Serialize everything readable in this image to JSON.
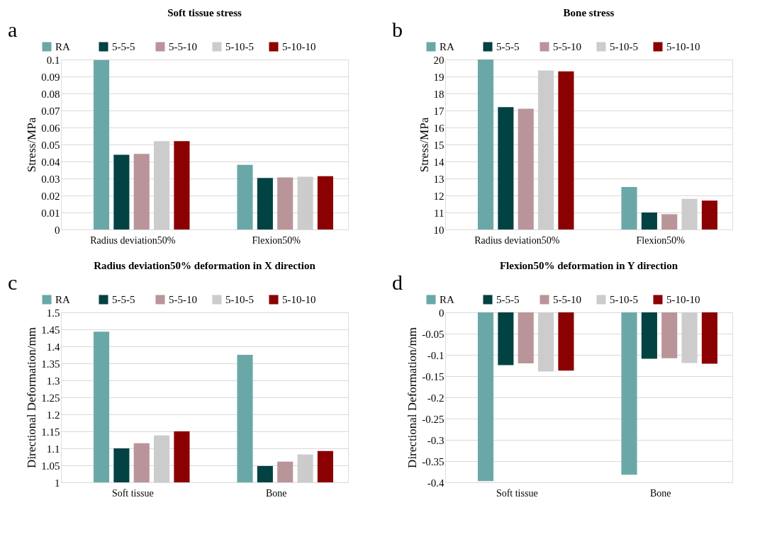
{
  "chart_data": [
    {
      "type": "bar",
      "title": "Soft tissue stress",
      "annotations": [
        "a"
      ],
      "ylabel": "Stress/MPa",
      "categories": [
        "Radius deviation50%",
        "Flexion50%"
      ],
      "ylim": [
        0,
        0.1
      ],
      "yticks": [
        0,
        0.01,
        0.02,
        0.03,
        0.04,
        0.05,
        0.06,
        0.07,
        0.08,
        0.09,
        0.1
      ],
      "grid": "y",
      "legend": "top",
      "series": [
        {
          "name": "RA",
          "color": "#6aa8a8",
          "values": [
            0.0997,
            0.038
          ]
        },
        {
          "name": "5-5-5",
          "color": "#034242",
          "values": [
            0.044,
            0.0303
          ]
        },
        {
          "name": "5-5-10",
          "color": "#b9959a",
          "values": [
            0.0445,
            0.0306
          ]
        },
        {
          "name": "5-10-5",
          "color": "#cccccc",
          "values": [
            0.052,
            0.031
          ]
        },
        {
          "name": "5-10-10",
          "color": "#8b0000",
          "values": [
            0.052,
            0.0314
          ]
        }
      ]
    },
    {
      "type": "bar",
      "title": "Bone stress",
      "annotations": [
        "b"
      ],
      "ylabel": "Stress/MPa",
      "categories": [
        "Radius deviation50%",
        "Flexion50%"
      ],
      "ylim": [
        10,
        20
      ],
      "yticks": [
        10,
        11,
        12,
        13,
        14,
        15,
        16,
        17,
        18,
        19,
        20
      ],
      "grid": "y",
      "legend": "top",
      "series": [
        {
          "name": "RA",
          "color": "#6aa8a8",
          "values": [
            20.0,
            12.5
          ]
        },
        {
          "name": "5-5-5",
          "color": "#034242",
          "values": [
            17.2,
            11.0
          ]
        },
        {
          "name": "5-5-10",
          "color": "#b9959a",
          "values": [
            17.1,
            10.9
          ]
        },
        {
          "name": "5-10-5",
          "color": "#cccccc",
          "values": [
            19.35,
            11.8
          ]
        },
        {
          "name": "5-10-10",
          "color": "#8b0000",
          "values": [
            19.3,
            11.7
          ]
        }
      ]
    },
    {
      "type": "bar",
      "title": "Radius deviation50% deformation in X direction",
      "annotations": [
        "c"
      ],
      "ylabel": "Directional Deformation/mm",
      "categories": [
        "Soft tissue",
        "Bone"
      ],
      "ylim": [
        1,
        1.5
      ],
      "yticks": [
        1,
        1.05,
        1.1,
        1.15,
        1.2,
        1.25,
        1.3,
        1.35,
        1.4,
        1.45,
        1.5
      ],
      "grid": "y",
      "legend": "top",
      "series": [
        {
          "name": "RA",
          "color": "#6aa8a8",
          "values": [
            1.443,
            1.375
          ]
        },
        {
          "name": "5-5-5",
          "color": "#034242",
          "values": [
            1.1,
            1.048
          ]
        },
        {
          "name": "5-5-10",
          "color": "#b9959a",
          "values": [
            1.115,
            1.061
          ]
        },
        {
          "name": "5-10-5",
          "color": "#cccccc",
          "values": [
            1.138,
            1.082
          ]
        },
        {
          "name": "5-10-10",
          "color": "#8b0000",
          "values": [
            1.15,
            1.092
          ]
        }
      ]
    },
    {
      "type": "bar",
      "title": "Flexion50% deformation in Y direction",
      "annotations": [
        "d"
      ],
      "ylabel": "Directional Deformation/mm",
      "categories": [
        "Soft tissue",
        "Bone"
      ],
      "ylim": [
        -0.4,
        0
      ],
      "yticks": [
        -0.4,
        -0.35,
        -0.3,
        -0.25,
        -0.2,
        -0.15,
        -0.1,
        -0.05,
        0
      ],
      "grid": "y",
      "legend": "top",
      "series": [
        {
          "name": "RA",
          "color": "#6aa8a8",
          "values": [
            -0.397,
            -0.382
          ]
        },
        {
          "name": "5-5-5",
          "color": "#034242",
          "values": [
            -0.124,
            -0.109
          ]
        },
        {
          "name": "5-5-10",
          "color": "#b9959a",
          "values": [
            -0.12,
            -0.108
          ]
        },
        {
          "name": "5-10-5",
          "color": "#cccccc",
          "values": [
            -0.139,
            -0.119
          ]
        },
        {
          "name": "5-10-10",
          "color": "#8b0000",
          "values": [
            -0.137,
            -0.121
          ]
        }
      ]
    }
  ]
}
